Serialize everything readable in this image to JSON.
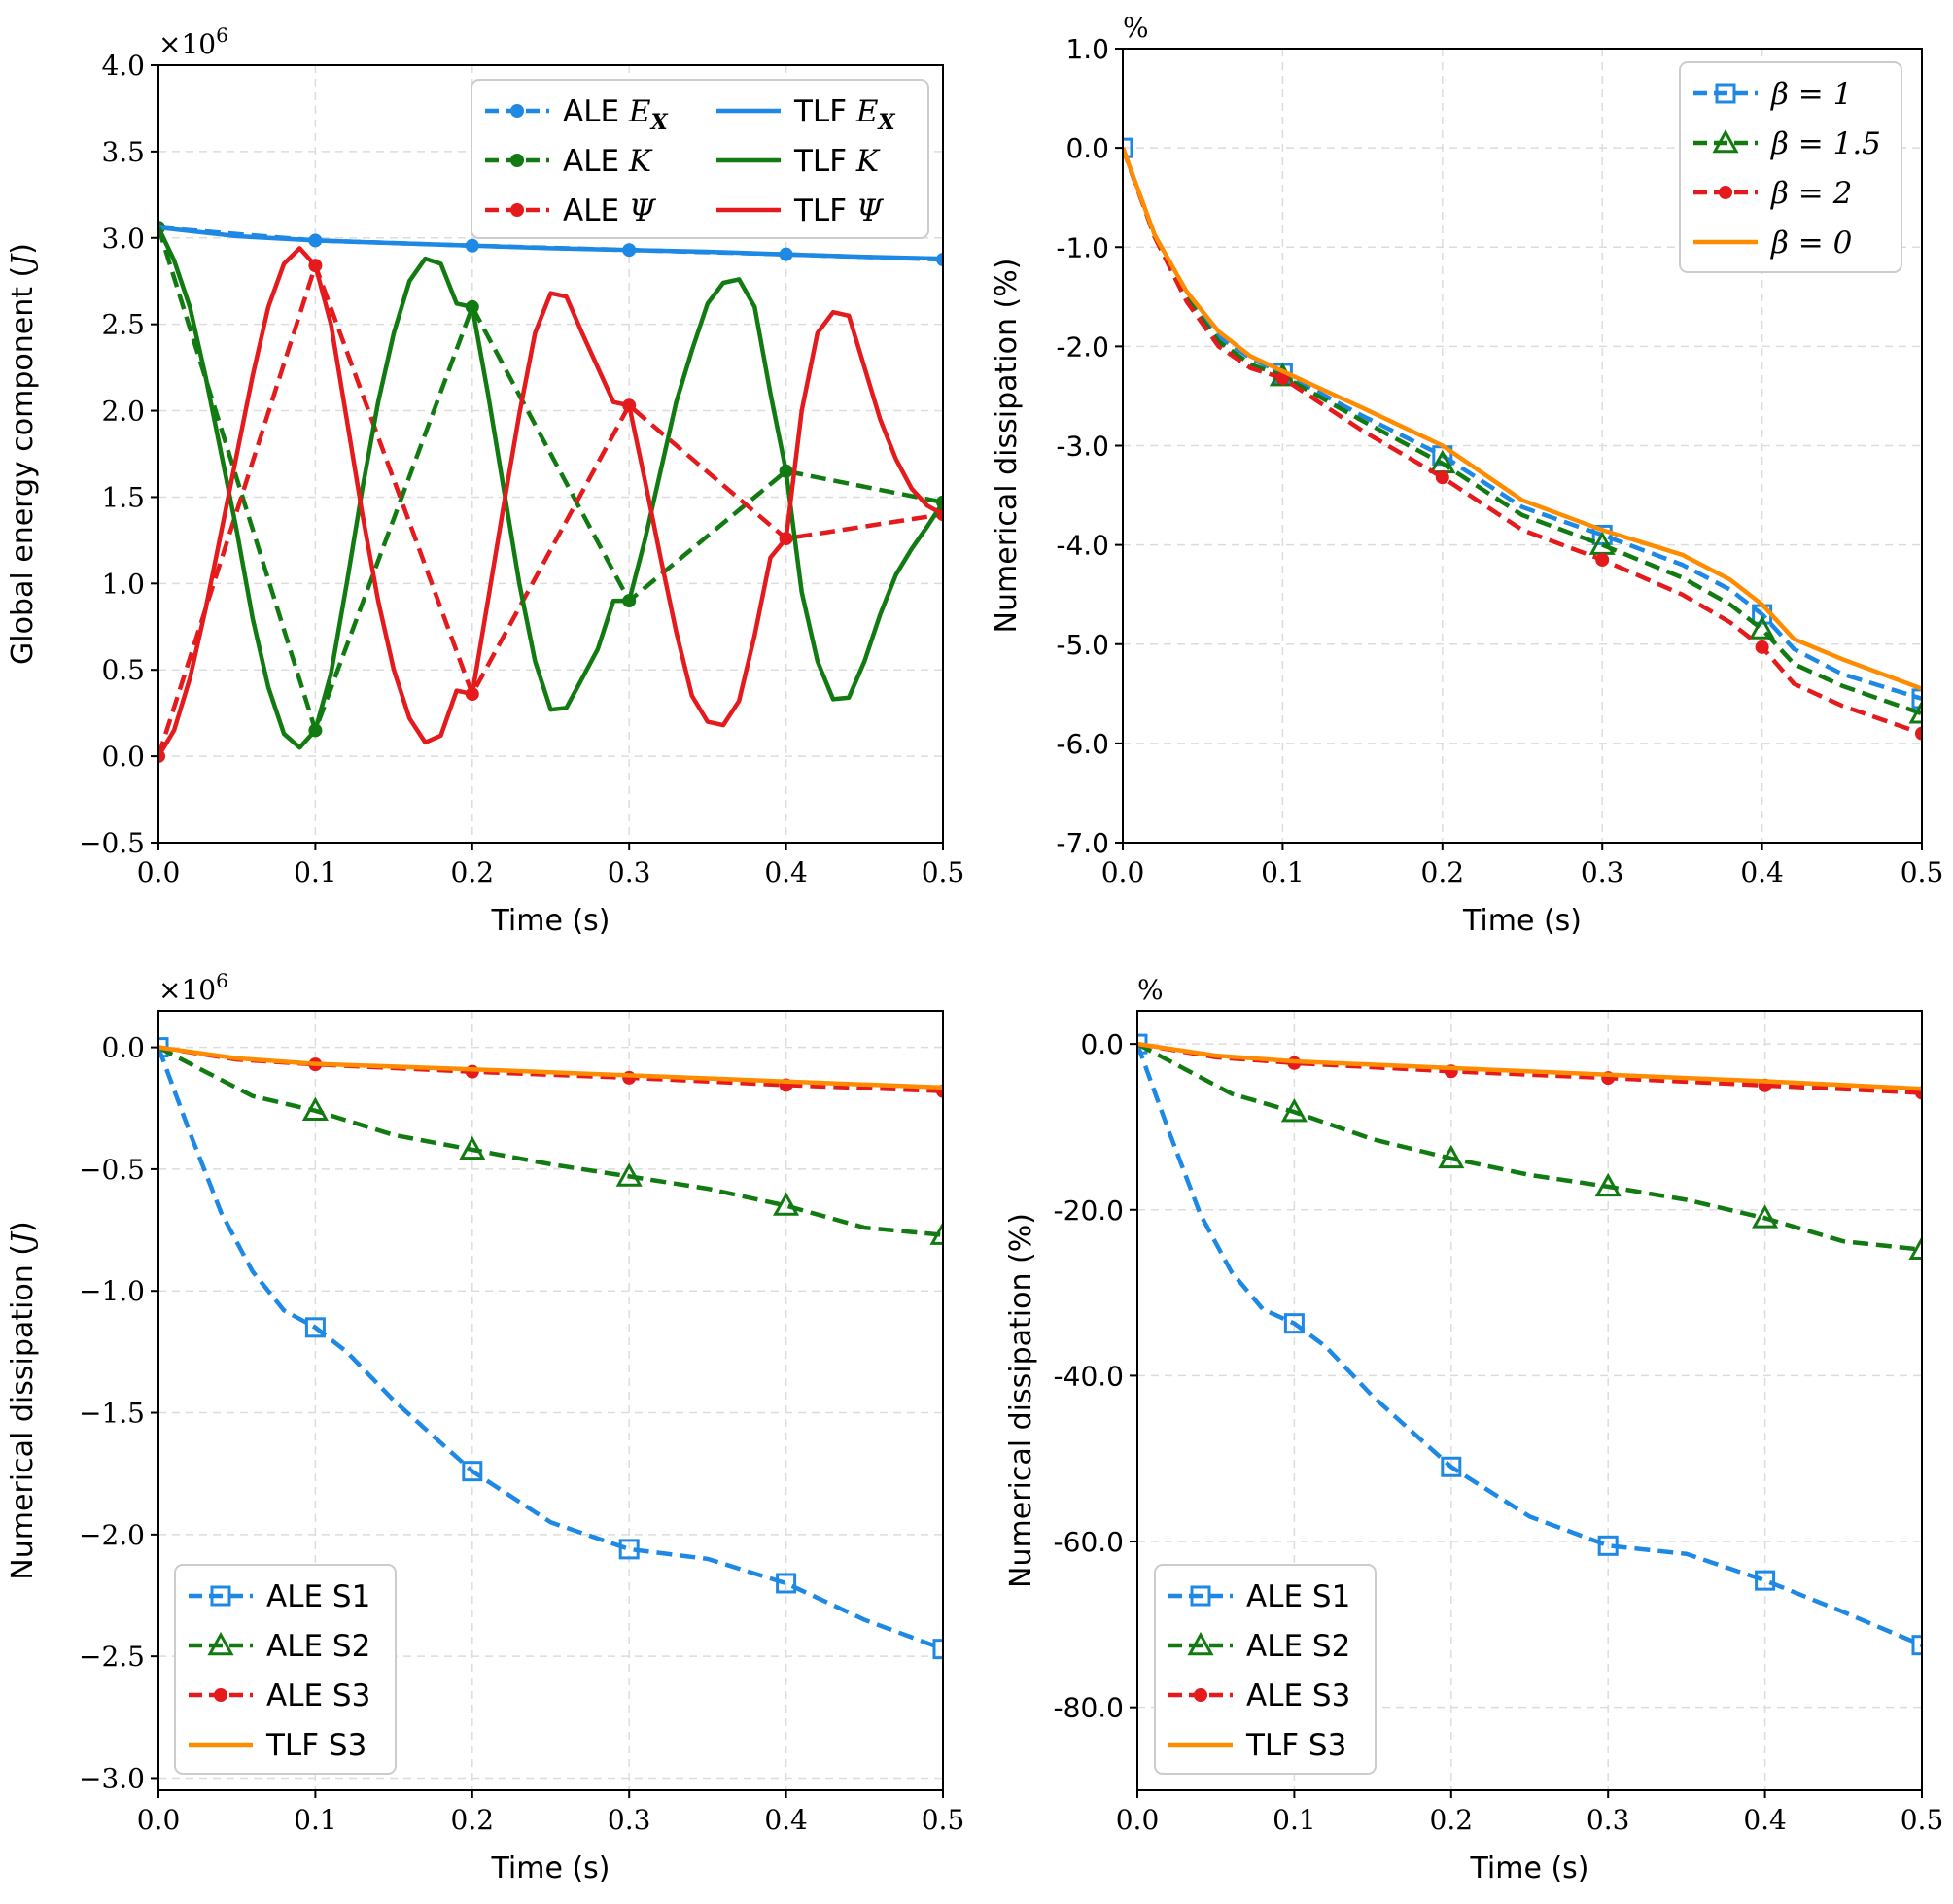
{
  "colors": {
    "blue": "#1e88e5",
    "green": "#117a11",
    "red": "#e41a1c",
    "orange": "#ff8c00"
  },
  "chart_data": [
    {
      "id": "a",
      "type": "line",
      "xlabel": "Time (s)",
      "ylabel": "Global energy component (J)",
      "y_multiplier": "×10^6",
      "xlim": [
        0,
        0.5
      ],
      "ylim": [
        -0.5,
        4.0
      ],
      "xticks": [
        "0.0",
        "0.1",
        "0.2",
        "0.3",
        "0.4",
        "0.5"
      ],
      "yticks": [
        "−0.5",
        "0.0",
        "0.5",
        "1.0",
        "1.5",
        "2.0",
        "2.5",
        "3.0",
        "3.5",
        "4.0"
      ],
      "grid": true,
      "legend_position": "top-right",
      "legend_columns": 2,
      "series": [
        {
          "name": "ALE E_X",
          "legend": {
            "prefix": "ALE ",
            "math": "E",
            "sub": "X"
          },
          "color": "blue",
          "style": "dashed",
          "marker": "dot",
          "x": [
            0,
            0.1,
            0.2,
            0.3,
            0.4,
            0.5
          ],
          "y": [
            3.06,
            2.985,
            2.955,
            2.93,
            2.905,
            2.875
          ]
        },
        {
          "name": "ALE K",
          "legend": {
            "prefix": "ALE ",
            "math": "K"
          },
          "color": "green",
          "style": "dashed",
          "marker": "dot",
          "x": [
            0.0,
            0.1,
            0.2,
            0.3,
            0.4,
            0.5
          ],
          "y": [
            3.06,
            0.15,
            2.6,
            0.9,
            1.65,
            1.47
          ]
        },
        {
          "name": "ALE Ψ",
          "legend": {
            "prefix": "ALE ",
            "math": "Ψ"
          },
          "color": "red",
          "style": "dashed",
          "marker": "dot",
          "x": [
            0.0,
            0.1,
            0.2,
            0.3,
            0.4,
            0.5
          ],
          "y": [
            0.0,
            2.84,
            0.36,
            2.03,
            1.26,
            1.4
          ]
        },
        {
          "name": "TLF E_X",
          "legend": {
            "prefix": "TLF ",
            "math": "E",
            "sub": "X"
          },
          "color": "blue",
          "style": "solid",
          "marker": "none",
          "x": [
            0,
            0.05,
            0.1,
            0.15,
            0.2,
            0.25,
            0.3,
            0.35,
            0.4,
            0.45,
            0.5
          ],
          "y": [
            3.06,
            3.01,
            2.985,
            2.97,
            2.955,
            2.94,
            2.93,
            2.92,
            2.905,
            2.89,
            2.88
          ]
        },
        {
          "name": "TLF K",
          "legend": {
            "prefix": "TLF ",
            "math": "K"
          },
          "color": "green",
          "style": "solid",
          "marker": "none",
          "x": [
            0,
            0.01,
            0.02,
            0.03,
            0.04,
            0.05,
            0.06,
            0.07,
            0.08,
            0.09,
            0.1,
            0.11,
            0.12,
            0.13,
            0.14,
            0.15,
            0.16,
            0.17,
            0.18,
            0.19,
            0.2,
            0.21,
            0.22,
            0.23,
            0.24,
            0.25,
            0.26,
            0.27,
            0.28,
            0.29,
            0.3,
            0.31,
            0.32,
            0.33,
            0.34,
            0.35,
            0.36,
            0.37,
            0.38,
            0.39,
            0.4,
            0.41,
            0.42,
            0.43,
            0.44,
            0.45,
            0.46,
            0.47,
            0.48,
            0.49,
            0.5
          ],
          "y": [
            3.06,
            2.87,
            2.6,
            2.2,
            1.75,
            1.3,
            0.8,
            0.4,
            0.13,
            0.05,
            0.15,
            0.48,
            1.0,
            1.55,
            2.05,
            2.45,
            2.75,
            2.88,
            2.85,
            2.62,
            2.6,
            2.1,
            1.55,
            1.0,
            0.55,
            0.27,
            0.28,
            0.45,
            0.62,
            0.9,
            0.9,
            1.25,
            1.65,
            2.05,
            2.35,
            2.62,
            2.74,
            2.76,
            2.6,
            2.1,
            1.65,
            0.95,
            0.55,
            0.33,
            0.34,
            0.55,
            0.82,
            1.05,
            1.2,
            1.33,
            1.47
          ]
        },
        {
          "name": "TLF Ψ",
          "legend": {
            "prefix": "TLF ",
            "math": "Ψ"
          },
          "color": "red",
          "style": "solid",
          "marker": "none",
          "x": [
            0,
            0.01,
            0.02,
            0.03,
            0.04,
            0.05,
            0.06,
            0.07,
            0.08,
            0.09,
            0.1,
            0.11,
            0.12,
            0.13,
            0.14,
            0.15,
            0.16,
            0.17,
            0.18,
            0.19,
            0.2,
            0.21,
            0.22,
            0.23,
            0.24,
            0.25,
            0.26,
            0.27,
            0.28,
            0.29,
            0.3,
            0.31,
            0.32,
            0.33,
            0.34,
            0.35,
            0.36,
            0.37,
            0.38,
            0.39,
            0.4,
            0.41,
            0.42,
            0.43,
            0.44,
            0.45,
            0.46,
            0.47,
            0.48,
            0.49,
            0.5
          ],
          "y": [
            0.0,
            0.15,
            0.45,
            0.85,
            1.3,
            1.75,
            2.2,
            2.6,
            2.85,
            2.94,
            2.84,
            2.5,
            1.95,
            1.4,
            0.9,
            0.5,
            0.22,
            0.08,
            0.12,
            0.38,
            0.36,
            0.9,
            1.45,
            1.98,
            2.45,
            2.68,
            2.66,
            2.45,
            2.25,
            2.05,
            2.03,
            1.6,
            1.15,
            0.72,
            0.35,
            0.2,
            0.18,
            0.32,
            0.7,
            1.15,
            1.26,
            2.0,
            2.45,
            2.57,
            2.55,
            2.25,
            1.95,
            1.72,
            1.55,
            1.45,
            1.4
          ]
        }
      ]
    },
    {
      "id": "b",
      "type": "line",
      "xlabel": "Time (s)",
      "ylabel": "Numerical dissipation (%)",
      "y_multiplier": "%",
      "xlim": [
        0,
        0.5
      ],
      "ylim": [
        -7.0,
        1.0
      ],
      "xticks": [
        "0.0",
        "0.1",
        "0.2",
        "0.3",
        "0.4",
        "0.5"
      ],
      "yticks": [
        "-7.0",
        "-6.0",
        "-5.0",
        "-4.0",
        "-3.0",
        "-2.0",
        "-1.0",
        "0.0",
        "1.0"
      ],
      "grid": true,
      "legend_position": "top-right",
      "legend_columns": 1,
      "series": [
        {
          "name": "β = 1",
          "legend": {
            "math": "β = 1"
          },
          "color": "blue",
          "style": "dashed",
          "marker": "square",
          "x": [
            0,
            0.02,
            0.04,
            0.06,
            0.08,
            0.1,
            0.15,
            0.2,
            0.25,
            0.3,
            0.35,
            0.38,
            0.4,
            0.42,
            0.45,
            0.5
          ],
          "y": [
            0,
            -0.9,
            -1.5,
            -1.9,
            -2.12,
            -2.27,
            -2.7,
            -3.1,
            -3.62,
            -3.9,
            -4.2,
            -4.45,
            -4.7,
            -5.05,
            -5.3,
            -5.55
          ],
          "marker_x": [
            0,
            0.1,
            0.2,
            0.3,
            0.4,
            0.5
          ],
          "marker_y": [
            0,
            -2.27,
            -3.1,
            -3.9,
            -4.7,
            -5.55
          ]
        },
        {
          "name": "β = 1.5",
          "legend": {
            "math": "β = 1.5"
          },
          "color": "green",
          "style": "dashed",
          "marker": "triangle",
          "x": [
            0,
            0.02,
            0.04,
            0.06,
            0.08,
            0.1,
            0.15,
            0.2,
            0.25,
            0.3,
            0.35,
            0.38,
            0.4,
            0.42,
            0.45,
            0.5
          ],
          "y": [
            0,
            -0.9,
            -1.52,
            -1.95,
            -2.18,
            -2.3,
            -2.75,
            -3.18,
            -3.7,
            -4.0,
            -4.33,
            -4.6,
            -4.85,
            -5.2,
            -5.42,
            -5.7
          ],
          "marker_x": [
            0.1,
            0.2,
            0.3,
            0.4,
            0.5
          ],
          "marker_y": [
            -2.3,
            -3.18,
            -4.0,
            -4.85,
            -5.7
          ]
        },
        {
          "name": "β = 2",
          "legend": {
            "math": "β = 2"
          },
          "color": "red",
          "style": "dashed",
          "marker": "dot",
          "x": [
            0,
            0.02,
            0.04,
            0.06,
            0.08,
            0.1,
            0.15,
            0.2,
            0.25,
            0.3,
            0.35,
            0.38,
            0.4,
            0.42,
            0.45,
            0.5
          ],
          "y": [
            0,
            -0.9,
            -1.55,
            -2.0,
            -2.22,
            -2.32,
            -2.85,
            -3.32,
            -3.85,
            -4.15,
            -4.5,
            -4.78,
            -5.03,
            -5.4,
            -5.62,
            -5.9
          ],
          "marker_x": [
            0.1,
            0.2,
            0.3,
            0.4,
            0.5
          ],
          "marker_y": [
            -2.32,
            -3.32,
            -4.15,
            -5.03,
            -5.9
          ]
        },
        {
          "name": "β = 0",
          "legend": {
            "math": "β = 0"
          },
          "color": "orange",
          "style": "solid",
          "marker": "none",
          "x": [
            0,
            0.02,
            0.04,
            0.06,
            0.08,
            0.1,
            0.15,
            0.2,
            0.25,
            0.3,
            0.35,
            0.38,
            0.4,
            0.42,
            0.45,
            0.5
          ],
          "y": [
            0,
            -0.88,
            -1.45,
            -1.85,
            -2.1,
            -2.25,
            -2.62,
            -3.0,
            -3.55,
            -3.85,
            -4.1,
            -4.35,
            -4.6,
            -4.95,
            -5.15,
            -5.45
          ]
        }
      ]
    },
    {
      "id": "c",
      "type": "line",
      "xlabel": "Time (s)",
      "ylabel": "Numerical dissipation (J)",
      "y_multiplier": "×10^6",
      "xlim": [
        0,
        0.5
      ],
      "ylim": [
        -3.05,
        0.15
      ],
      "xticks": [
        "0.0",
        "0.1",
        "0.2",
        "0.3",
        "0.4",
        "0.5"
      ],
      "yticks": [
        "−3.0",
        "−2.5",
        "−2.0",
        "−1.5",
        "−1.0",
        "−0.5",
        "0.0"
      ],
      "grid": true,
      "legend_position": "bottom-left",
      "legend_columns": 1,
      "series": [
        {
          "name": "ALE S1",
          "legend": {
            "prefix": "ALE S1"
          },
          "color": "blue",
          "style": "dashed",
          "marker": "square",
          "x": [
            0,
            0.02,
            0.04,
            0.06,
            0.08,
            0.1,
            0.12,
            0.15,
            0.2,
            0.25,
            0.3,
            0.35,
            0.4,
            0.45,
            0.5
          ],
          "y": [
            0,
            -0.35,
            -0.68,
            -0.92,
            -1.08,
            -1.15,
            -1.25,
            -1.45,
            -1.74,
            -1.95,
            -2.06,
            -2.1,
            -2.2,
            -2.35,
            -2.47
          ],
          "marker_x": [
            0,
            0.1,
            0.2,
            0.3,
            0.4,
            0.5
          ],
          "marker_y": [
            0,
            -1.15,
            -1.74,
            -2.06,
            -2.2,
            -2.47
          ]
        },
        {
          "name": "ALE S2",
          "legend": {
            "prefix": "ALE S2"
          },
          "color": "green",
          "style": "dashed",
          "marker": "triangle",
          "x": [
            0,
            0.03,
            0.06,
            0.1,
            0.15,
            0.2,
            0.25,
            0.3,
            0.35,
            0.4,
            0.45,
            0.5
          ],
          "y": [
            0,
            -0.1,
            -0.2,
            -0.26,
            -0.36,
            -0.42,
            -0.48,
            -0.53,
            -0.58,
            -0.65,
            -0.74,
            -0.77
          ],
          "marker_x": [
            0.1,
            0.2,
            0.3,
            0.4,
            0.5
          ],
          "marker_y": [
            -0.26,
            -0.42,
            -0.53,
            -0.65,
            -0.77
          ]
        },
        {
          "name": "ALE S3",
          "legend": {
            "prefix": "ALE S3"
          },
          "color": "red",
          "style": "dashed",
          "marker": "dot",
          "x": [
            0,
            0.05,
            0.1,
            0.2,
            0.3,
            0.4,
            0.5
          ],
          "y": [
            0,
            -0.05,
            -0.07,
            -0.1,
            -0.125,
            -0.155,
            -0.18
          ],
          "marker_x": [
            0.1,
            0.2,
            0.3,
            0.4,
            0.5
          ],
          "marker_y": [
            -0.07,
            -0.1,
            -0.125,
            -0.155,
            -0.18
          ]
        },
        {
          "name": "TLF S3",
          "legend": {
            "prefix": "TLF S3"
          },
          "color": "orange",
          "style": "solid",
          "marker": "none",
          "x": [
            0,
            0.05,
            0.1,
            0.2,
            0.3,
            0.4,
            0.5
          ],
          "y": [
            0,
            -0.045,
            -0.068,
            -0.09,
            -0.115,
            -0.14,
            -0.165
          ]
        }
      ]
    },
    {
      "id": "d",
      "type": "line",
      "xlabel": "Time (s)",
      "ylabel": "Numerical dissipation (%)",
      "y_multiplier": "%",
      "xlim": [
        0,
        0.5
      ],
      "ylim": [
        -90.0,
        4.0
      ],
      "xticks": [
        "0.0",
        "0.1",
        "0.2",
        "0.3",
        "0.4",
        "0.5"
      ],
      "yticks": [
        "-80.0",
        "-60.0",
        "-40.0",
        "-20.0",
        "0.0"
      ],
      "grid": true,
      "legend_position": "bottom-left",
      "legend_columns": 1,
      "series": [
        {
          "name": "ALE S1",
          "legend": {
            "prefix": "ALE S1"
          },
          "color": "blue",
          "style": "dashed",
          "marker": "square",
          "x": [
            0,
            0.02,
            0.04,
            0.06,
            0.08,
            0.1,
            0.12,
            0.15,
            0.2,
            0.25,
            0.3,
            0.35,
            0.4,
            0.45,
            0.5
          ],
          "y": [
            0,
            -10.5,
            -20.5,
            -27.5,
            -32.0,
            -33.7,
            -36.5,
            -42.5,
            -51.0,
            -57.0,
            -60.5,
            -61.5,
            -64.7,
            -68.5,
            -72.5
          ],
          "marker_x": [
            0,
            0.1,
            0.2,
            0.3,
            0.4,
            0.5
          ],
          "marker_y": [
            0,
            -33.7,
            -51.0,
            -60.5,
            -64.7,
            -72.5
          ]
        },
        {
          "name": "ALE S2",
          "legend": {
            "prefix": "ALE S2"
          },
          "color": "green",
          "style": "dashed",
          "marker": "triangle",
          "x": [
            0,
            0.03,
            0.06,
            0.1,
            0.15,
            0.2,
            0.25,
            0.3,
            0.35,
            0.4,
            0.45,
            0.5
          ],
          "y": [
            0,
            -3.0,
            -6.0,
            -8.2,
            -11.5,
            -13.8,
            -15.8,
            -17.2,
            -18.8,
            -21.0,
            -23.8,
            -24.8
          ],
          "marker_x": [
            0.1,
            0.2,
            0.3,
            0.4,
            0.5
          ],
          "marker_y": [
            -8.2,
            -13.8,
            -17.2,
            -21.0,
            -24.8
          ]
        },
        {
          "name": "ALE S3",
          "legend": {
            "prefix": "ALE S3"
          },
          "color": "red",
          "style": "dashed",
          "marker": "dot",
          "x": [
            0,
            0.05,
            0.1,
            0.2,
            0.3,
            0.4,
            0.5
          ],
          "y": [
            0,
            -1.6,
            -2.3,
            -3.3,
            -4.1,
            -5.0,
            -5.9
          ],
          "marker_x": [
            0.1,
            0.2,
            0.3,
            0.4,
            0.5
          ],
          "marker_y": [
            -2.3,
            -3.3,
            -4.1,
            -5.0,
            -5.9
          ]
        },
        {
          "name": "TLF S3",
          "legend": {
            "prefix": "TLF S3"
          },
          "color": "orange",
          "style": "solid",
          "marker": "none",
          "x": [
            0,
            0.05,
            0.1,
            0.2,
            0.3,
            0.4,
            0.5
          ],
          "y": [
            0,
            -1.4,
            -2.1,
            -2.9,
            -3.7,
            -4.5,
            -5.4
          ]
        }
      ]
    }
  ]
}
